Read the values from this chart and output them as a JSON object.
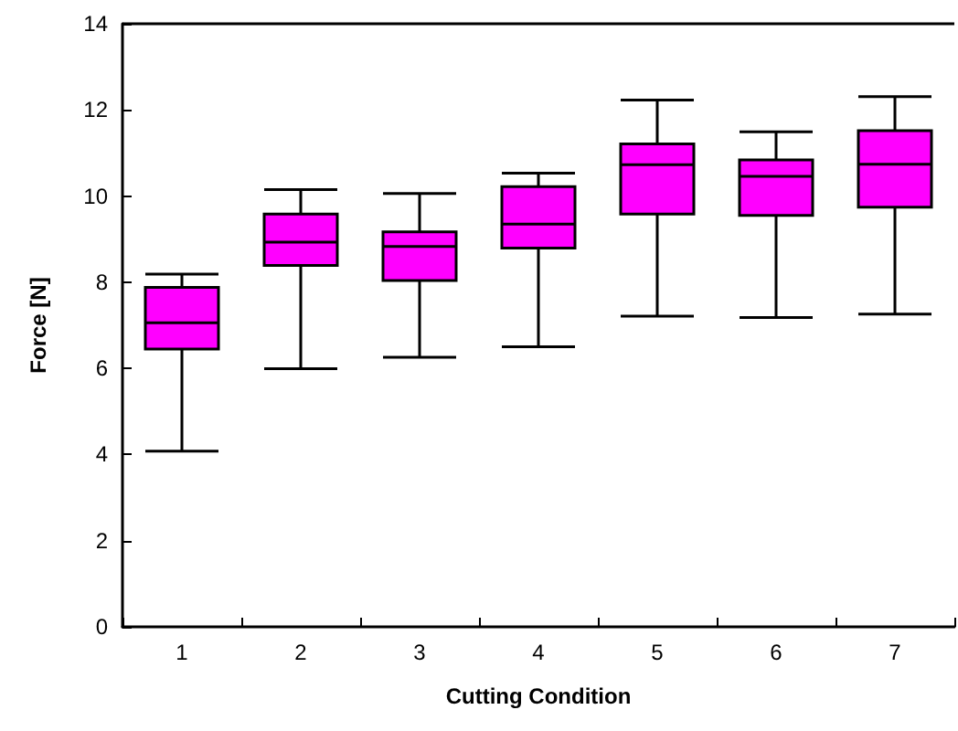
{
  "chart_data": {
    "type": "box",
    "xlabel": "Cutting Condition",
    "ylabel": "Force [N]",
    "categories": [
      "1",
      "2",
      "3",
      "4",
      "5",
      "6",
      "7"
    ],
    "color": "#ff00ff",
    "boxes": [
      {
        "low": 4.08,
        "q1": 6.45,
        "median": 7.06,
        "q3": 7.88,
        "high": 8.19
      },
      {
        "low": 5.99,
        "q1": 8.39,
        "median": 8.93,
        "q3": 9.58,
        "high": 10.15
      },
      {
        "low": 6.26,
        "q1": 8.04,
        "median": 8.83,
        "q3": 9.17,
        "high": 10.06
      },
      {
        "low": 6.5,
        "q1": 8.79,
        "median": 9.35,
        "q3": 10.22,
        "high": 10.53
      },
      {
        "low": 7.21,
        "q1": 9.58,
        "median": 10.73,
        "q3": 11.21,
        "high": 12.23
      },
      {
        "low": 7.18,
        "q1": 9.55,
        "median": 10.46,
        "q3": 10.84,
        "high": 11.49
      },
      {
        "low": 7.26,
        "q1": 9.74,
        "median": 10.74,
        "q3": 11.52,
        "high": 12.31
      }
    ],
    "ylim": [
      0,
      14
    ],
    "yticks": [
      0,
      2,
      4,
      6,
      8,
      10,
      12,
      14
    ],
    "grid": false
  }
}
